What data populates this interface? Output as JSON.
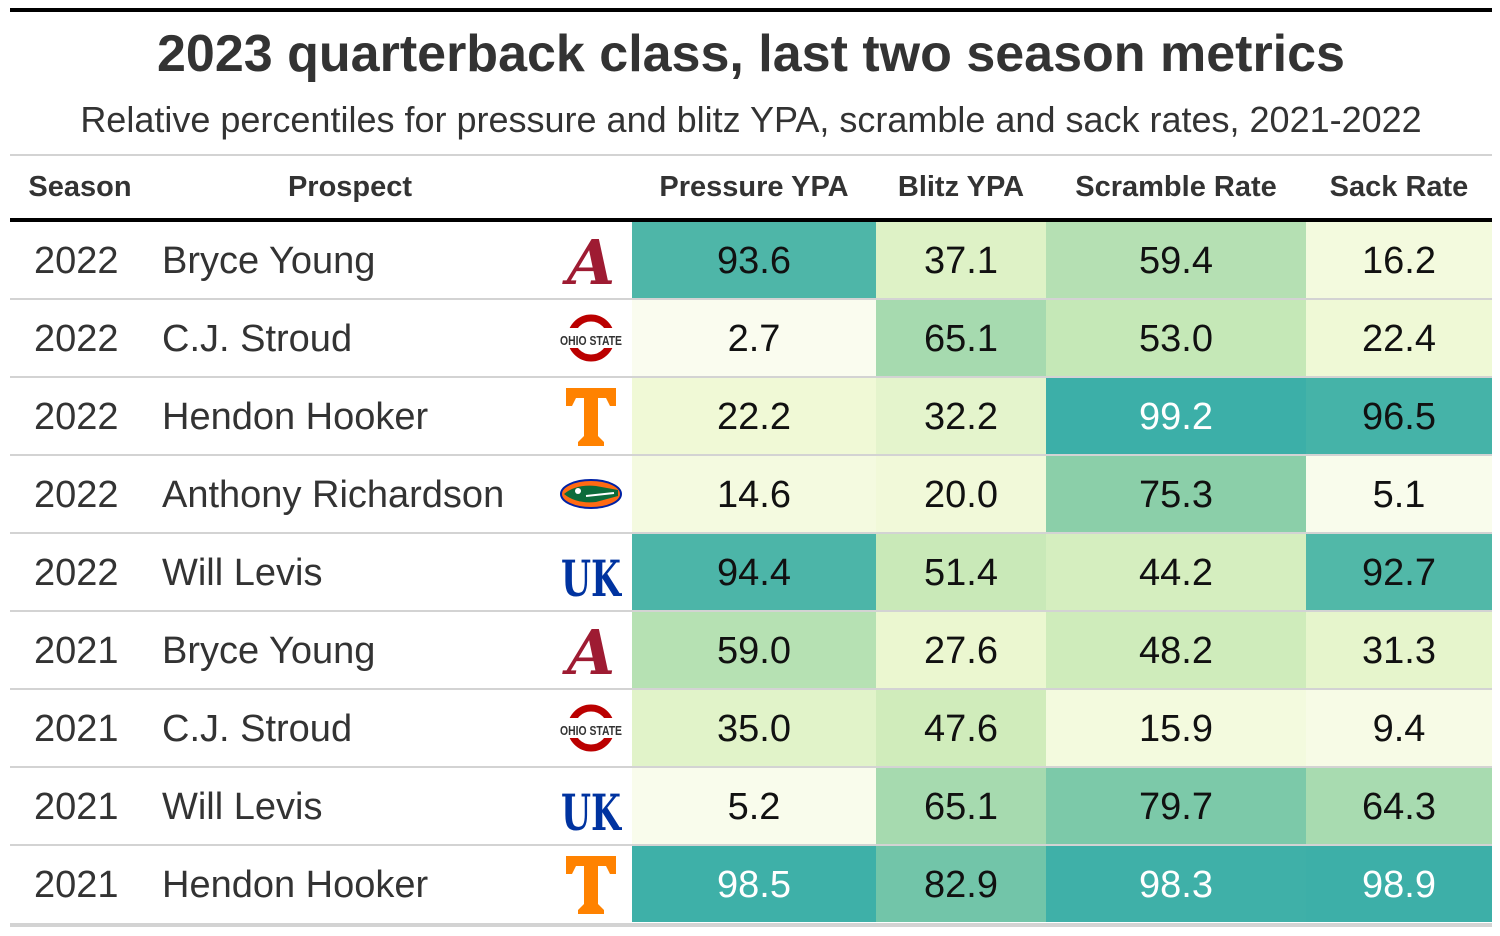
{
  "title": "2023 quarterback class, last two season metrics",
  "subtitle": "Relative percentiles for pressure and blitz YPA, scramble and sack rates, 2021-2022",
  "headers": {
    "season": "Season",
    "prospect": "Prospect",
    "pressure": "Pressure YPA",
    "blitz": "Blitz YPA",
    "scramble": "Scramble Rate",
    "sack": "Sack Rate"
  },
  "logos": {
    "alabama": {
      "text": "A",
      "color": "#9e1b32"
    },
    "ohiostate": {
      "text": "OHIO STATE",
      "color": "#bb0000"
    },
    "tennessee": {
      "text": "T",
      "color": "#ff8200"
    },
    "florida": {
      "text": "",
      "color": "#0021a5"
    },
    "kentucky": {
      "text": "UK",
      "color": "#0033a0"
    }
  },
  "palette": {
    "low": "#fcfdf2",
    "mid1": "#eef8d3",
    "mid2": "#cdebb9",
    "mid3": "#8ccfa9",
    "high": "#39aea8"
  },
  "chart_data": {
    "type": "table",
    "columns": [
      "Season",
      "Prospect",
      "Pressure YPA",
      "Blitz YPA",
      "Scramble Rate",
      "Sack Rate"
    ],
    "rows": [
      {
        "season": "2022",
        "prospect": "Bryce Young",
        "school": "alabama",
        "pressure": "93.6",
        "blitz": "37.1",
        "scramble": "59.4",
        "sack": "16.2"
      },
      {
        "season": "2022",
        "prospect": "C.J. Stroud",
        "school": "ohiostate",
        "pressure": "2.7",
        "blitz": "65.1",
        "scramble": "53.0",
        "sack": "22.4"
      },
      {
        "season": "2022",
        "prospect": "Hendon Hooker",
        "school": "tennessee",
        "pressure": "22.2",
        "blitz": "32.2",
        "scramble": "99.2",
        "sack": "96.5"
      },
      {
        "season": "2022",
        "prospect": "Anthony Richardson",
        "school": "florida",
        "pressure": "14.6",
        "blitz": "20.0",
        "scramble": "75.3",
        "sack": "5.1"
      },
      {
        "season": "2022",
        "prospect": "Will Levis",
        "school": "kentucky",
        "pressure": "94.4",
        "blitz": "51.4",
        "scramble": "44.2",
        "sack": "92.7"
      },
      {
        "season": "2021",
        "prospect": "Bryce Young",
        "school": "alabama",
        "pressure": "59.0",
        "blitz": "27.6",
        "scramble": "48.2",
        "sack": "31.3"
      },
      {
        "season": "2021",
        "prospect": "C.J. Stroud",
        "school": "ohiostate",
        "pressure": "35.0",
        "blitz": "47.6",
        "scramble": "15.9",
        "sack": "9.4"
      },
      {
        "season": "2021",
        "prospect": "Will Levis",
        "school": "kentucky",
        "pressure": "5.2",
        "blitz": "65.1",
        "scramble": "79.7",
        "sack": "64.3"
      },
      {
        "season": "2021",
        "prospect": "Hendon Hooker",
        "school": "tennessee",
        "pressure": "98.5",
        "blitz": "82.9",
        "scramble": "98.3",
        "sack": "98.9"
      }
    ],
    "value_range": [
      0,
      100
    ]
  }
}
